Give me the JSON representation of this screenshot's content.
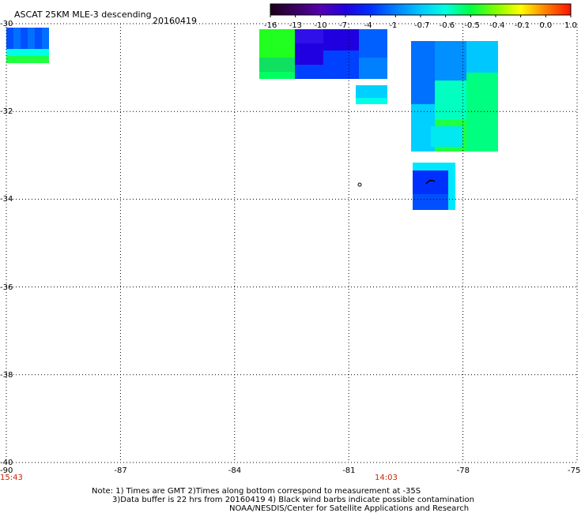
{
  "header": {
    "title": "ASCAT 25KM MLE-3 descending",
    "date": "20160419"
  },
  "colorbar": {
    "ticks": [
      "-16",
      "-13",
      "-10",
      "-7",
      "-4",
      "-1",
      "-0.7",
      "-0.6",
      "-0.5",
      "-0.4",
      "-0.1",
      "0.0",
      "1.0"
    ],
    "colors": [
      "#1a001a",
      "#3a0060",
      "#5500b0",
      "#2000e0",
      "#0030ff",
      "#0080ff",
      "#00c8ff",
      "#00ffe0",
      "#00ff40",
      "#80ff00",
      "#ffff00",
      "#ff8000",
      "#ff1000"
    ]
  },
  "axes": {
    "lat_labels": [
      "-30",
      "-32",
      "-34",
      "-36",
      "-38",
      "-40"
    ],
    "lon_labels": [
      "-90",
      "-87",
      "-84",
      "-81",
      "-78",
      "-75"
    ],
    "lat_range": [
      -40,
      -30
    ],
    "lon_range": [
      -90,
      -75
    ]
  },
  "times": {
    "left": "15:43",
    "middle": "14:03"
  },
  "notes": {
    "line1": "Note: 1) Times are GMT 2)Times along bottom correspond to measurement at -35S",
    "line2": "3)Data buffer is 22 hrs from 20160419 4) Black wind barbs indicate possible contamination",
    "line3": "NOAA/NESDIS/Center for Satellite Applications and Research"
  },
  "chart_data": {
    "type": "heatmap",
    "title": "ASCAT 25KM MLE-3 descending",
    "swaths": [
      {
        "lon_range": [
          -89.5,
          -88.4
        ],
        "lat_range": [
          -30.95,
          -30.1
        ],
        "values": "-4 to -1"
      },
      {
        "lon_range": [
          -82.5,
          -78.9
        ],
        "lat_range": [
          -31.3,
          -30.0
        ],
        "values": "-10 to -0.7"
      },
      {
        "lon_range": [
          -78.8,
          -76.9
        ],
        "lat_range": [
          -32.5,
          -30.5
        ],
        "values": "-1 to -0.5"
      },
      {
        "lon_range": [
          -78.4,
          -77.2
        ],
        "lat_range": [
          -34.3,
          -33.3
        ],
        "values": "-4 to -1"
      }
    ],
    "grid": true
  }
}
